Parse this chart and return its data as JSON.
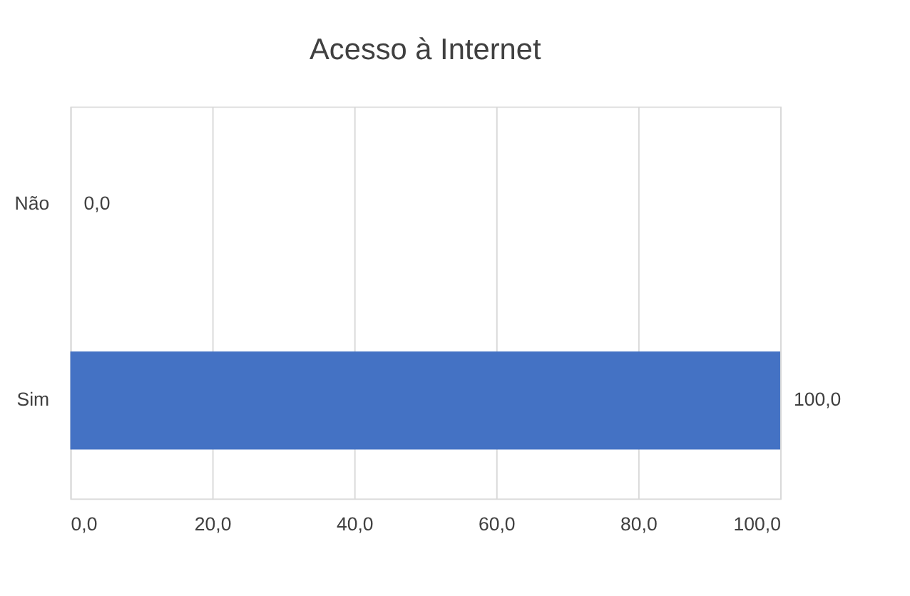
{
  "chart_data": {
    "type": "bar",
    "orientation": "horizontal",
    "title": "Acesso à Internet",
    "categories": [
      "Não",
      "Sim"
    ],
    "values": [
      0,
      100
    ],
    "value_labels": [
      "0,0",
      "100,0"
    ],
    "color": "#4472c4",
    "xlim": [
      0,
      100
    ],
    "xticks": [
      {
        "value": 0,
        "label": "0,0"
      },
      {
        "value": 20,
        "label": "20,0"
      },
      {
        "value": 40,
        "label": "40,0"
      },
      {
        "value": 60,
        "label": "60,0"
      },
      {
        "value": 80,
        "label": "80,0"
      },
      {
        "value": 100,
        "label": "100,0"
      }
    ],
    "grid": "x"
  }
}
